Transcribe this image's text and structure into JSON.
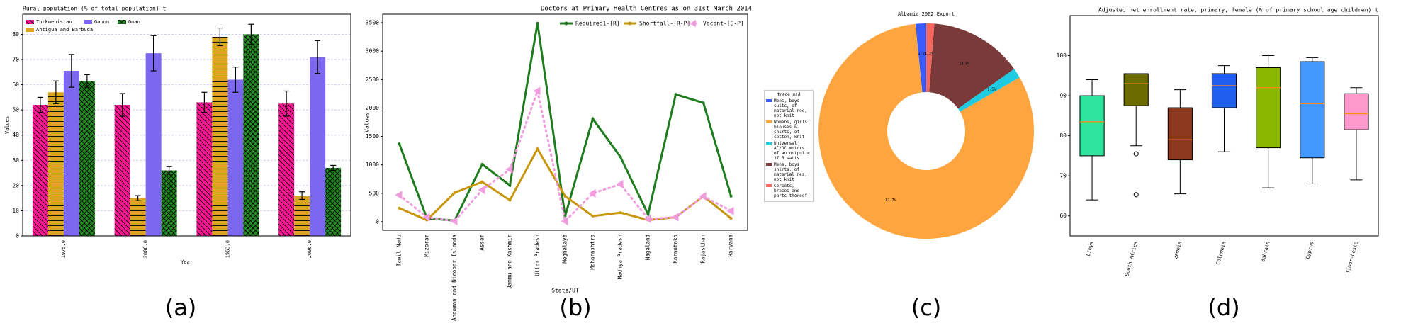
{
  "panel_labels": [
    "(a)",
    "(b)",
    "(c)",
    "(d)"
  ],
  "chart_data": [
    {
      "type": "bar",
      "title": "Rural population (% of total population) t",
      "x_label": "Year",
      "y_label": "Values",
      "categories": [
        "1975.0",
        "2008.0",
        "1963.0",
        "2006.0"
      ],
      "series": [
        {
          "name": "Turkmenistan",
          "color": "#ff1493",
          "hatch": "\\\\",
          "values": [
            52,
            52,
            53,
            52.5
          ],
          "errors": [
            3,
            4.5,
            4,
            5
          ]
        },
        {
          "name": "Antigua and Barbuda",
          "color": "#daa520",
          "hatch": "-",
          "values": [
            57,
            15,
            79,
            16
          ],
          "errors": [
            4.5,
            1,
            3.5,
            1.5
          ]
        },
        {
          "name": "Gabon",
          "color": "#7b68ee",
          "values": [
            65.5,
            72.5,
            62,
            71
          ],
          "errors": [
            6.5,
            7,
            5,
            6.5
          ]
        },
        {
          "name": "Oman",
          "color": "#228b22",
          "hatch": "x",
          "values": [
            61.5,
            26,
            80,
            27
          ],
          "errors": [
            2.5,
            1.5,
            4,
            1
          ]
        }
      ],
      "ylim": [
        0,
        88
      ],
      "yticks": [
        0,
        10,
        20,
        30,
        40,
        50,
        60,
        70,
        80
      ],
      "grid": true,
      "legend": "upper left"
    },
    {
      "type": "line",
      "title": "Doctors at Primary Health Centres as on 31st March 2014",
      "x_label": "State/UT",
      "y_label": "Values",
      "categories": [
        "Tamil Nadu",
        "Mizoram",
        "Andaman and Nicobar Islands",
        "Assam",
        "Jammu and Kashmir",
        "Uttar Pradesh",
        "Meghalaya",
        "Maharashtra",
        "Madhya Pradesh",
        "Nagaland",
        "Karnataka",
        "Rajasthan",
        "Haryana"
      ],
      "series": [
        {
          "name": "Required1-[R]",
          "color": "#1e7b1e",
          "marker": "circle",
          "values": [
            1370,
            60,
            20,
            1010,
            640,
            3490,
            100,
            1810,
            1140,
            130,
            2240,
            2090,
            450
          ]
        },
        {
          "name": "Shortfall-[R-P]",
          "color": "#c8960a",
          "marker": "circle",
          "values": [
            240,
            30,
            510,
            700,
            380,
            1280,
            450,
            100,
            160,
            30,
            80,
            450,
            60
          ]
        },
        {
          "name": "Vacant-[S-P]",
          "color": "#f29ce0",
          "marker": "triangle",
          "dashed": true,
          "values": [
            470,
            80,
            10,
            560,
            920,
            2300,
            10,
            500,
            660,
            50,
            80,
            450,
            190
          ]
        }
      ],
      "ylim": [
        -150,
        3650
      ],
      "yticks": [
        0,
        500,
        1000,
        1500,
        2000,
        2500,
        3000,
        3500
      ],
      "legend": "upper center"
    },
    {
      "type": "pie",
      "title": "Albania 2002 Export",
      "legend_title": "trade usd",
      "categories": [
        "Mens, boys suits, of material nes, not knit",
        "Womens, girls blouses & shirts, of cotton, knit",
        "Universal AC/DC motors of an output < 37.5 watts",
        "Mens, boys shirts, of material nes, not knit",
        "Corsets, braces and parts thereof"
      ],
      "values": [
        1.6,
        81.7,
        1.5,
        14.0,
        1.2
      ],
      "value_labels": [
        "1.6%",
        "81.7%",
        "1.5%",
        "14.0%",
        "1.2%"
      ],
      "colors": [
        "#3a5bff",
        "#ffa540",
        "#1ecbe1",
        "#7b3a3a",
        "#f4695c"
      ],
      "donut": true
    },
    {
      "type": "box",
      "title": "Adjusted net enrollment rate, primary, female (% of primary school age children) t",
      "categories": [
        "Libya",
        "South Africa",
        "Zambia",
        "Colombia",
        "Bahrain",
        "Cyprus",
        "Timor-Leste"
      ],
      "boxes": [
        {
          "whislo": 64,
          "q1": 75,
          "med": 83.5,
          "q3": 90,
          "whishi": 94
        },
        {
          "whislo": 77.5,
          "q1": 87.5,
          "med": 93,
          "q3": 95.5,
          "whishi": 95.5,
          "fliers": [
            75.5,
            65.3
          ]
        },
        {
          "whislo": 65.5,
          "q1": 74,
          "med": 79,
          "q3": 87,
          "whishi": 91.5
        },
        {
          "whislo": 76,
          "q1": 87,
          "med": 92.5,
          "q3": 95.5,
          "whishi": 97.5
        },
        {
          "whislo": 67,
          "q1": 77,
          "med": 92,
          "q3": 97,
          "whishi": 100
        },
        {
          "whislo": 68,
          "q1": 74.5,
          "med": 88,
          "q3": 98.5,
          "whishi": 99.5
        },
        {
          "whislo": 69,
          "q1": 81.5,
          "med": 85.5,
          "q3": 90.5,
          "whishi": 92
        }
      ],
      "colors": [
        "#2ee59d",
        "#6b6b00",
        "#8b3a1f",
        "#1f5ff0",
        "#8ab800",
        "#4499ff",
        "#ff99cc"
      ],
      "median_color": "#ff8c1a",
      "ylim": [
        55,
        110
      ],
      "yticks": [
        60,
        70,
        80,
        90,
        100
      ]
    }
  ]
}
